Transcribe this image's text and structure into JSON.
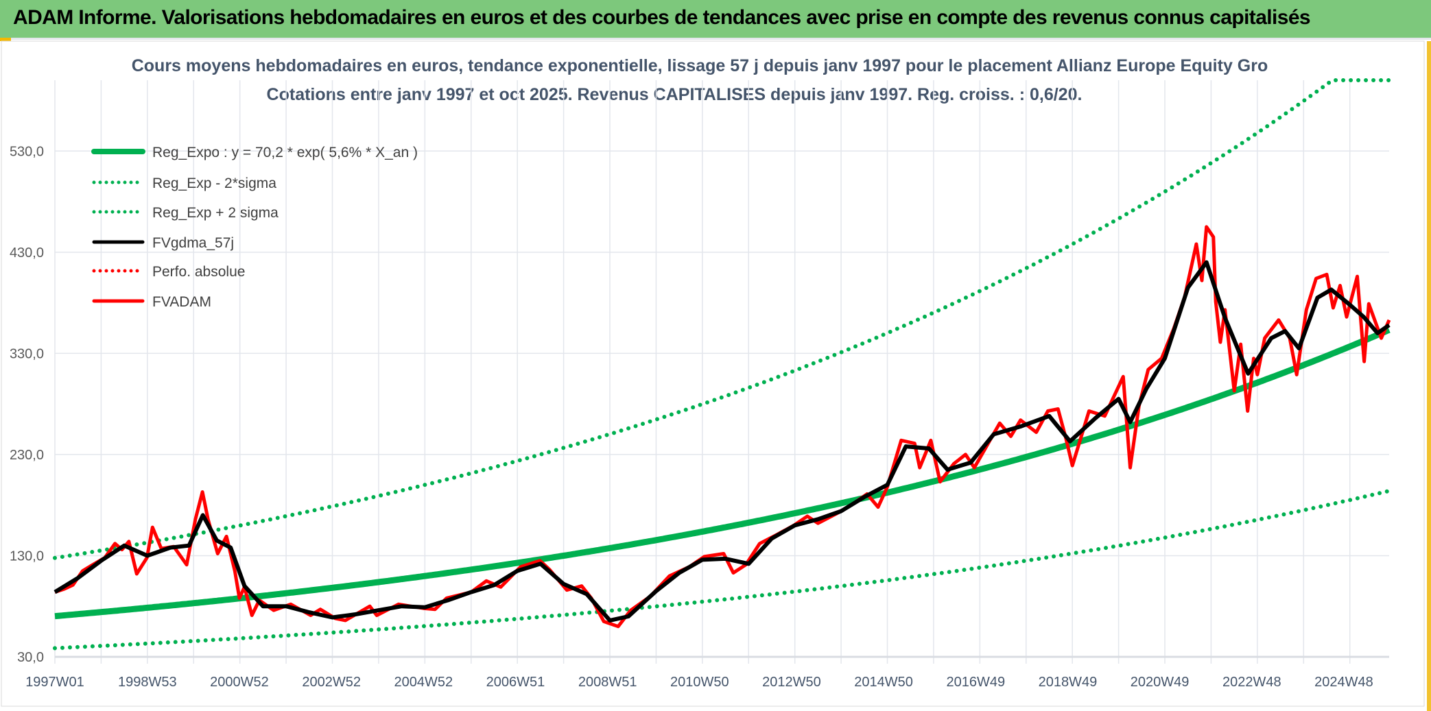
{
  "header": {
    "title": "ADAM Informe. Valorisations hebdomadaires en euros et des courbes de tendances avec prise en compte des revenus connus capitalisés"
  },
  "chart_data": {
    "type": "line",
    "title": "Cours moyens hebdomadaires en euros, tendance exponentielle, lissage 57 j depuis janv 1997 pour le placement Allianz Europe Equity Gro",
    "subtitle": "Cotations entre janv 1997 et oct 2025. Revenus CAPITALISES depuis janv 1997. Reg. croiss. : 0,6/20.",
    "xlabel": "",
    "ylabel": "",
    "xlim_years": [
      1997.0,
      2025.85
    ],
    "ylim": [
      30,
      600
    ],
    "y_ticks": [
      30,
      130,
      230,
      330,
      430,
      530
    ],
    "y_tick_labels": [
      "30,0",
      "130,0",
      "230,0",
      "330,0",
      "430,0",
      "530,0"
    ],
    "x_tick_labels": [
      "1997W01",
      "1998W53",
      "2000W52",
      "2002W52",
      "2004W52",
      "2006W51",
      "2008W51",
      "2010W50",
      "2012W50",
      "2014W50",
      "2016W49",
      "2018W49",
      "2020W49",
      "2022W48",
      "2024W48"
    ],
    "x_tick_years": [
      1997.0,
      1999.0,
      2000.99,
      2002.98,
      2004.97,
      2006.96,
      2008.95,
      2010.94,
      2012.93,
      2014.92,
      2016.91,
      2018.9,
      2020.89,
      2022.88,
      2024.87
    ],
    "x_grid_step_years": 1,
    "grid": true,
    "legend_position": "top-left",
    "regression": {
      "a": 70.2,
      "growth_rate": 0.056,
      "band_factor": 1.82
    },
    "legend": [
      {
        "label": "Reg_Expo : y = 70,2 * exp( 5,6% *  X_an )",
        "color": "#00b050",
        "style": "solid"
      },
      {
        "label": "Reg_Exp - 2*sigma",
        "color": "#00b050",
        "style": "dotted"
      },
      {
        "label": "Reg_Exp + 2 sigma",
        "color": "#00b050",
        "style": "dotted"
      },
      {
        "label": "FVgdma_57j",
        "color": "#000000",
        "style": "solid"
      },
      {
        "label": "Perfo. absolue",
        "color": "#ff0000",
        "style": "dotted"
      },
      {
        "label": "FVADAM",
        "color": "#ff0000",
        "style": "solid"
      }
    ],
    "series": [
      {
        "name": "FVgdma_57j",
        "color": "#000000",
        "points": [
          [
            1997.0,
            94
          ],
          [
            1997.5,
            108
          ],
          [
            1998.0,
            125
          ],
          [
            1998.5,
            140
          ],
          [
            1999.0,
            130
          ],
          [
            1999.5,
            138
          ],
          [
            1999.9,
            140
          ],
          [
            2000.2,
            170
          ],
          [
            2000.5,
            145
          ],
          [
            2000.8,
            138
          ],
          [
            2001.1,
            100
          ],
          [
            2001.5,
            80
          ],
          [
            2002.0,
            80
          ],
          [
            2002.5,
            74
          ],
          [
            2003.0,
            69
          ],
          [
            2003.5,
            72
          ],
          [
            2004.0,
            76
          ],
          [
            2004.5,
            80
          ],
          [
            2005.0,
            79
          ],
          [
            2005.5,
            86
          ],
          [
            2006.0,
            94
          ],
          [
            2006.5,
            101
          ],
          [
            2007.0,
            115
          ],
          [
            2007.5,
            122
          ],
          [
            2008.0,
            102
          ],
          [
            2008.5,
            92
          ],
          [
            2009.0,
            66
          ],
          [
            2009.4,
            70
          ],
          [
            2010.0,
            95
          ],
          [
            2010.5,
            113
          ],
          [
            2011.0,
            126
          ],
          [
            2011.5,
            127
          ],
          [
            2012.0,
            122
          ],
          [
            2012.5,
            147
          ],
          [
            2013.0,
            160
          ],
          [
            2013.5,
            166
          ],
          [
            2014.0,
            174
          ],
          [
            2014.5,
            188
          ],
          [
            2015.0,
            200
          ],
          [
            2015.4,
            238
          ],
          [
            2015.9,
            236
          ],
          [
            2016.3,
            215
          ],
          [
            2016.8,
            222
          ],
          [
            2017.3,
            250
          ],
          [
            2017.9,
            258
          ],
          [
            2018.5,
            268
          ],
          [
            2018.95,
            243
          ],
          [
            2019.5,
            266
          ],
          [
            2020.0,
            285
          ],
          [
            2020.25,
            262
          ],
          [
            2020.6,
            295
          ],
          [
            2021.0,
            325
          ],
          [
            2021.5,
            395
          ],
          [
            2021.9,
            420
          ],
          [
            2022.3,
            365
          ],
          [
            2022.8,
            310
          ],
          [
            2023.3,
            345
          ],
          [
            2023.6,
            352
          ],
          [
            2023.9,
            335
          ],
          [
            2024.3,
            385
          ],
          [
            2024.6,
            393
          ],
          [
            2025.0,
            378
          ],
          [
            2025.3,
            366
          ],
          [
            2025.6,
            350
          ],
          [
            2025.85,
            358
          ]
        ]
      },
      {
        "name": "FVADAM",
        "color": "#ff0000",
        "points": [
          [
            1997.0,
            94
          ],
          [
            1997.2,
            97
          ],
          [
            1997.39,
            101
          ],
          [
            1997.6,
            115
          ],
          [
            1997.82,
            121
          ],
          [
            1998.08,
            128
          ],
          [
            1998.3,
            142
          ],
          [
            1998.45,
            136
          ],
          [
            1998.6,
            144
          ],
          [
            1998.77,
            112
          ],
          [
            1998.99,
            128
          ],
          [
            1999.11,
            158
          ],
          [
            1999.3,
            137
          ],
          [
            1999.57,
            139
          ],
          [
            1999.85,
            121
          ],
          [
            2000.04,
            166
          ],
          [
            2000.19,
            193
          ],
          [
            2000.31,
            166
          ],
          [
            2000.52,
            132
          ],
          [
            2000.71,
            149
          ],
          [
            2000.89,
            115
          ],
          [
            2000.99,
            88
          ],
          [
            2001.1,
            99
          ],
          [
            2001.26,
            71
          ],
          [
            2001.42,
            86
          ],
          [
            2001.73,
            76
          ],
          [
            2002.1,
            82
          ],
          [
            2002.53,
            71
          ],
          [
            2002.74,
            77
          ],
          [
            2003.06,
            68
          ],
          [
            2003.28,
            66
          ],
          [
            2003.81,
            80
          ],
          [
            2003.96,
            71
          ],
          [
            2004.43,
            82
          ],
          [
            2004.97,
            78
          ],
          [
            2005.22,
            77
          ],
          [
            2005.47,
            88
          ],
          [
            2006.0,
            94
          ],
          [
            2006.33,
            105
          ],
          [
            2006.64,
            99
          ],
          [
            2007.07,
            119
          ],
          [
            2007.49,
            125
          ],
          [
            2007.7,
            116
          ],
          [
            2008.07,
            96
          ],
          [
            2008.39,
            100
          ],
          [
            2008.6,
            88
          ],
          [
            2008.87,
            65
          ],
          [
            2009.18,
            60
          ],
          [
            2009.45,
            76
          ],
          [
            2009.88,
            90
          ],
          [
            2010.29,
            110
          ],
          [
            2010.72,
            119
          ],
          [
            2011.04,
            129
          ],
          [
            2011.46,
            132
          ],
          [
            2011.67,
            113
          ],
          [
            2011.94,
            121
          ],
          [
            2012.24,
            142
          ],
          [
            2012.62,
            151
          ],
          [
            2012.98,
            160
          ],
          [
            2013.27,
            169
          ],
          [
            2013.5,
            162
          ],
          [
            2013.96,
            173
          ],
          [
            2014.31,
            183
          ],
          [
            2014.56,
            191
          ],
          [
            2014.8,
            178
          ],
          [
            2015.0,
            198
          ],
          [
            2015.3,
            244
          ],
          [
            2015.59,
            241
          ],
          [
            2015.7,
            217
          ],
          [
            2015.94,
            244
          ],
          [
            2016.14,
            203
          ],
          [
            2016.44,
            221
          ],
          [
            2016.69,
            230
          ],
          [
            2016.88,
            217
          ],
          [
            2017.13,
            237
          ],
          [
            2017.43,
            261
          ],
          [
            2017.67,
            248
          ],
          [
            2017.88,
            264
          ],
          [
            2018.22,
            252
          ],
          [
            2018.47,
            273
          ],
          [
            2018.69,
            275
          ],
          [
            2018.86,
            246
          ],
          [
            2019.0,
            219
          ],
          [
            2019.36,
            273
          ],
          [
            2019.7,
            268
          ],
          [
            2020.1,
            307
          ],
          [
            2020.25,
            217
          ],
          [
            2020.44,
            278
          ],
          [
            2020.64,
            314
          ],
          [
            2020.93,
            325
          ],
          [
            2021.19,
            354
          ],
          [
            2021.43,
            386
          ],
          [
            2021.68,
            438
          ],
          [
            2021.8,
            402
          ],
          [
            2021.9,
            455
          ],
          [
            2022.05,
            445
          ],
          [
            2022.1,
            381
          ],
          [
            2022.2,
            341
          ],
          [
            2022.3,
            373
          ],
          [
            2022.5,
            293
          ],
          [
            2022.64,
            339
          ],
          [
            2022.79,
            273
          ],
          [
            2022.92,
            325
          ],
          [
            2023.0,
            309
          ],
          [
            2023.16,
            345
          ],
          [
            2023.46,
            363
          ],
          [
            2023.7,
            345
          ],
          [
            2023.85,
            309
          ],
          [
            2024.06,
            373
          ],
          [
            2024.27,
            404
          ],
          [
            2024.5,
            408
          ],
          [
            2024.64,
            375
          ],
          [
            2024.79,
            397
          ],
          [
            2024.93,
            366
          ],
          [
            2025.16,
            406
          ],
          [
            2025.31,
            322
          ],
          [
            2025.41,
            379
          ],
          [
            2025.68,
            345
          ],
          [
            2025.85,
            363
          ]
        ]
      }
    ]
  }
}
